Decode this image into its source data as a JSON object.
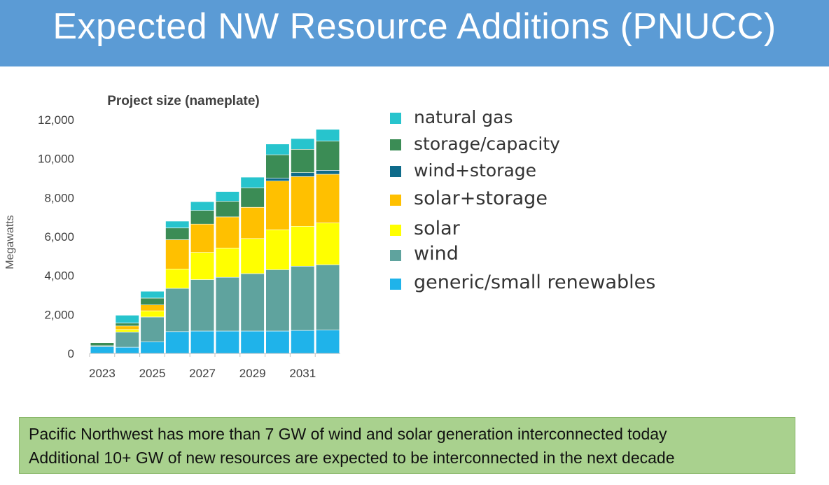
{
  "header": {
    "title": "Expected NW Resource Additions (PNUCC)"
  },
  "chart_data": {
    "type": "bar",
    "stacked": true,
    "title": "Project size (nameplate)",
    "ylabel": "Megawatts",
    "xlabel": "",
    "ylim": [
      0,
      12000
    ],
    "yticks": [
      "0",
      "2,000",
      "4,000",
      "6,000",
      "8,000",
      "10,000",
      "12,000"
    ],
    "ytick_values": [
      0,
      2000,
      4000,
      6000,
      8000,
      10000,
      12000
    ],
    "categories": [
      "2023",
      "2024",
      "2025",
      "2026",
      "2027",
      "2028",
      "2029",
      "2030",
      "2031",
      "2032"
    ],
    "xtick_labels": [
      "2023",
      "",
      "2025",
      "",
      "2027",
      "",
      "2029",
      "",
      "2031",
      ""
    ],
    "grid": false,
    "legend_position": "right",
    "series": [
      {
        "name": "generic/small renewables",
        "color": "#1fb3ea",
        "values": [
          350,
          320,
          600,
          1120,
          1150,
          1150,
          1150,
          1150,
          1180,
          1200
        ]
      },
      {
        "name": "wind",
        "color": "#5fa39e",
        "values": [
          50,
          780,
          1270,
          2220,
          2640,
          2760,
          2950,
          3150,
          3300,
          3350
        ]
      },
      {
        "name": "solar",
        "color": "#ffff00",
        "values": [
          0,
          130,
          320,
          1000,
          1400,
          1500,
          1800,
          2050,
          2050,
          2150
        ]
      },
      {
        "name": "solar+storage",
        "color": "#ffc000",
        "values": [
          0,
          180,
          300,
          1500,
          1450,
          1600,
          1600,
          2500,
          2550,
          2500
        ]
      },
      {
        "name": "wind+storage",
        "color": "#0e6b8a",
        "values": [
          0,
          0,
          0,
          0,
          0,
          0,
          0,
          150,
          200,
          200
        ]
      },
      {
        "name": "storage/capacity",
        "color": "#3b8c55",
        "values": [
          150,
          150,
          350,
          600,
          700,
          800,
          1000,
          1200,
          1200,
          1500
        ]
      },
      {
        "name": "natural gas",
        "color": "#27c4cd",
        "values": [
          0,
          400,
          350,
          350,
          450,
          500,
          550,
          550,
          550,
          600
        ]
      }
    ]
  },
  "legend": {
    "items": [
      {
        "label": "natural gas",
        "color": "#27c4cd"
      },
      {
        "label": "storage/capacity",
        "color": "#3b8c55"
      },
      {
        "label": "wind+storage",
        "color": "#0e6b8a"
      },
      {
        "label": "solar+storage",
        "color": "#ffc000"
      },
      {
        "label": "solar",
        "color": "#ffff00"
      },
      {
        "label": "wind",
        "color": "#5fa39e"
      },
      {
        "label": "generic/small renewables",
        "color": "#1fb3ea"
      }
    ]
  },
  "callout": {
    "line1": "Pacific Northwest has more than 7 GW of wind and solar generation interconnected today",
    "line2": "Additional 10+ GW of new resources are expected to be interconnected in the next decade"
  }
}
